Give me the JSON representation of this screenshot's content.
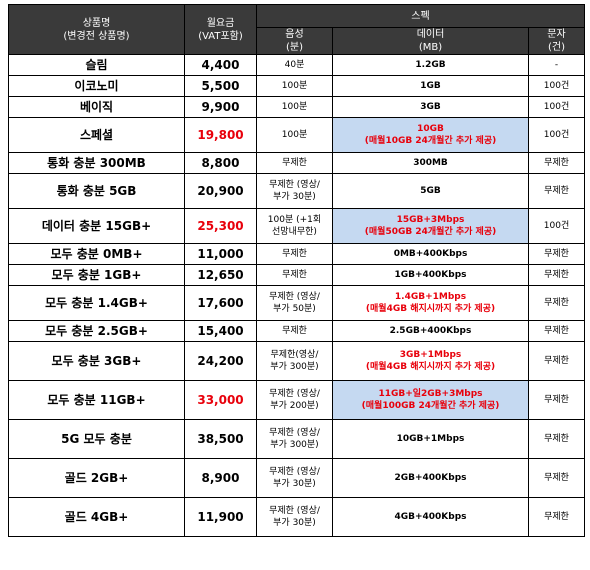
{
  "header": {
    "name_line1": "상품명",
    "name_line2": "(변경전 상품명)",
    "fee_line1": "월요금",
    "fee_line2": "(VAT포함)",
    "spec": "스펙",
    "voice_line1": "음성",
    "voice_line2": "(분)",
    "data_line1": "데이터",
    "data_line2": "(MB)",
    "sms_line1": "문자",
    "sms_line2": "(건)"
  },
  "rows": [
    {
      "name": "슬림",
      "price": "4,400",
      "voice": [
        "40분"
      ],
      "data": [
        "1.2GB"
      ],
      "sms": "-"
    },
    {
      "name": "이코노미",
      "price": "5,500",
      "voice": [
        "100분"
      ],
      "data": [
        "1GB"
      ],
      "sms": "100건"
    },
    {
      "name": "베이직",
      "price": "9,900",
      "voice": [
        "100분"
      ],
      "data": [
        "3GB"
      ],
      "sms": "100건"
    },
    {
      "name": "스페셜",
      "price": "19,800",
      "voice": [
        "100분"
      ],
      "data": [
        "10GB",
        "(매월10GB 24개월간 추가 제공)"
      ],
      "sms": "100건"
    },
    {
      "name": "통화 충분 300MB",
      "price": "8,800",
      "voice": [
        "무제한"
      ],
      "data": [
        "300MB"
      ],
      "sms": "무제한"
    },
    {
      "name": "통화 충분 5GB",
      "price": "20,900",
      "voice": [
        "무제한 (영상/",
        "부가 30분)"
      ],
      "data": [
        "5GB"
      ],
      "sms": "무제한"
    },
    {
      "name": "데이터 충분 15GB+",
      "price": "25,300",
      "voice": [
        "100분 (+1회",
        "선망내무한)"
      ],
      "data": [
        "15GB+3Mbps",
        "(매월50GB 24개월간 추가 제공)"
      ],
      "sms": "100건"
    },
    {
      "name": "모두 충분 0MB+",
      "price": "11,000",
      "voice": [
        "무제한"
      ],
      "data": [
        "0MB+400Kbps"
      ],
      "sms": "무제한"
    },
    {
      "name": "모두 충분 1GB+",
      "price": "12,650",
      "voice": [
        "무제한"
      ],
      "data": [
        "1GB+400Kbps"
      ],
      "sms": "무제한"
    },
    {
      "name": "모두 충분 1.4GB+",
      "price": "17,600",
      "voice": [
        "무제한 (영상/",
        "부가 50분)"
      ],
      "data": [
        "1.4GB+1Mbps",
        "(매월4GB 해지시까지 추가 제공)"
      ],
      "sms": "무제한"
    },
    {
      "name": "모두 충분 2.5GB+",
      "price": "15,400",
      "voice": [
        "무제한"
      ],
      "data": [
        "2.5GB+400Kbps"
      ],
      "sms": "무제한"
    },
    {
      "name": "모두 충분 3GB+",
      "price": "24,200",
      "voice": [
        "무제한(영상/",
        "부가 300분)"
      ],
      "data": [
        "3GB+1Mbps",
        "(매월4GB 해지시까지 추가 제공)"
      ],
      "sms": "무제한"
    },
    {
      "name": "모두 충분 11GB+",
      "price": "33,000",
      "voice": [
        "무제한 (영상/",
        "부가 200분)"
      ],
      "data": [
        "11GB+일2GB+3Mbps",
        "(매월100GB 24개월간 추가 제공)"
      ],
      "sms": "무제한"
    },
    {
      "name": "5G 모두 충분",
      "price": "38,500",
      "voice": [
        "무제한 (영상/",
        "부가 300분)"
      ],
      "data": [
        "10GB+1Mbps"
      ],
      "sms": "무제한"
    },
    {
      "name": "골드 2GB+",
      "price": "8,900",
      "voice": [
        "무제한 (영상/",
        "부가 30분)"
      ],
      "data": [
        "2GB+400Kbps"
      ],
      "sms": "무제한"
    },
    {
      "name": "골드 4GB+",
      "price": "11,900",
      "voice": [
        "무제한 (영상/",
        "부가 30분)"
      ],
      "data": [
        "4GB+400Kbps"
      ],
      "sms": "무제한"
    }
  ],
  "colors": {
    "header_bg": "#3a3a3a",
    "highlight_bg": "#c5d9f1",
    "highlight_text": "#e8000b"
  }
}
